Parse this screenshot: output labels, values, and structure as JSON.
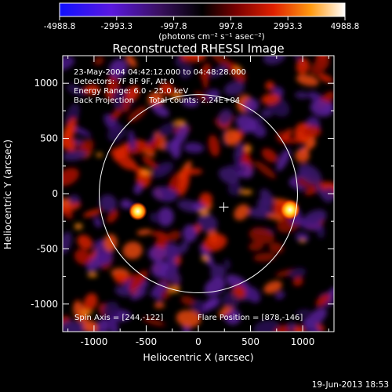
{
  "colorbar": {
    "ticks": [
      "-4988.8",
      "-2993.3",
      "-997.8",
      "997.8",
      "2993.3",
      "4988.8"
    ],
    "unit_label": "(photons cm⁻² s⁻¹ asec⁻²)"
  },
  "footer": {
    "timestamp": "19-Jun-2013 18:53"
  },
  "chart_data": {
    "type": "heatmap",
    "title": "Reconstructed RHESSI Image",
    "xlabel": "Heliocentric X (arcsec)",
    "ylabel": "Heliocentric Y (arcsec)",
    "xlim": [
      -1300,
      1300
    ],
    "ylim": [
      -1250,
      1250
    ],
    "x_ticks": [
      -1000,
      -500,
      0,
      500,
      1000
    ],
    "y_ticks": [
      -1000,
      -500,
      0,
      500,
      1000
    ],
    "colorbar_range": [
      -4988.8,
      4988.8
    ],
    "info_lines": [
      "23-May-2004 04:42:12.000 to 04:48:28.000",
      "Detectors: 7F 8F 9F, Att 0",
      "Energy Range: 6.0 - 25.0 keV",
      "Back Projection      Total counts: 2.24E+04"
    ],
    "bottom_left_note": "Spin Axis = [244,-122]",
    "bottom_right_note": "Flare Position = [878,-146]",
    "solar_limb": {
      "center": [
        0,
        0
      ],
      "radius": 950
    },
    "spin_axis_marker": [
      244,
      -122
    ],
    "bright_sources": [
      {
        "x": 878,
        "y": -146,
        "level": 0.95
      },
      {
        "x": -580,
        "y": -160,
        "level": 0.85
      }
    ],
    "colors": {
      "negative_max": "#1e10ff",
      "zero": "#000000",
      "positive_mid": "#e02000",
      "positive_max": "#ffffff"
    }
  }
}
